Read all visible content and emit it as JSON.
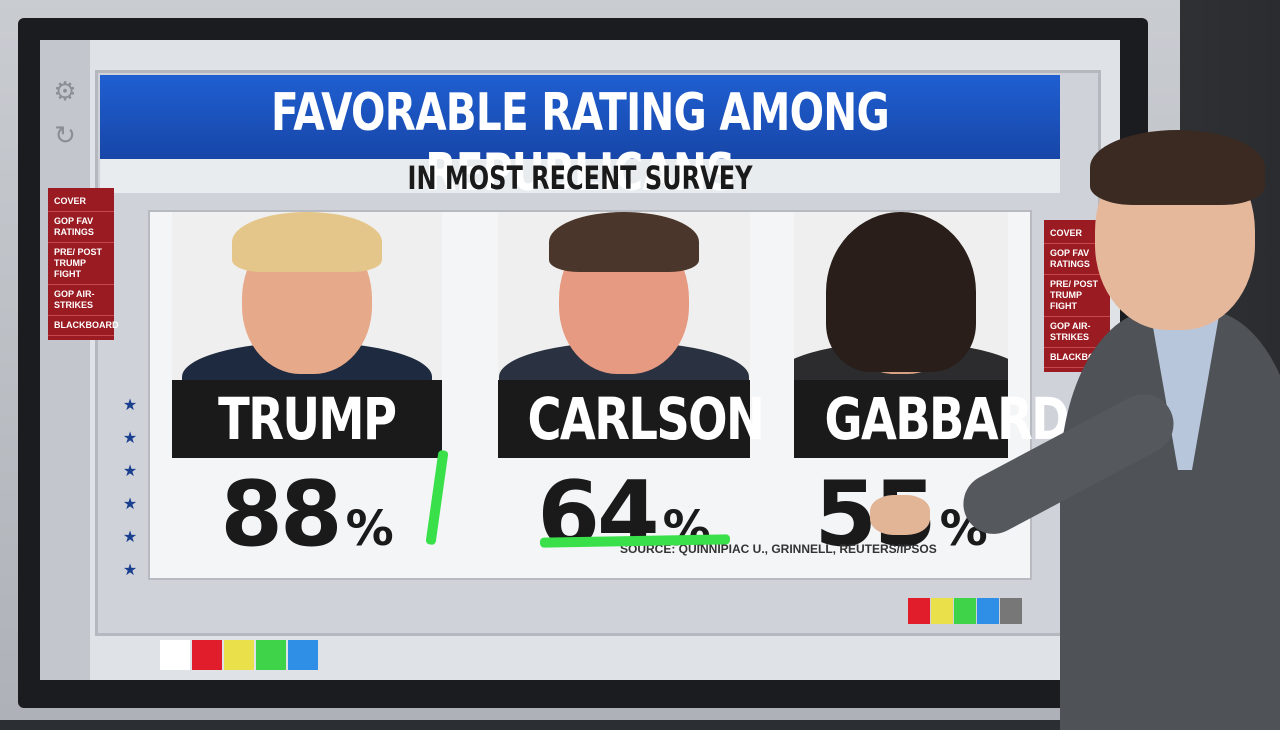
{
  "graphic": {
    "title": "FAVORABLE RATING AMONG REPUBLICANS",
    "subtitle": "IN MOST RECENT SURVEY",
    "source": "SOURCE: QUINNIPIAC U., GRINNELL, REUTERS/IPSOS",
    "percent_sign": "%",
    "candidates": [
      {
        "name": "TRUMP",
        "value": "88"
      },
      {
        "name": "CARLSON",
        "value": "64"
      },
      {
        "name": "GABBARD",
        "value": "55"
      }
    ]
  },
  "menu": {
    "items": [
      "COVER",
      "GOP FAV RATINGS",
      "PRE/ POST TRUMP FIGHT",
      "GOP AIR- STRIKES",
      "BLACKBOARD"
    ]
  },
  "colors": {
    "title_blue": "#1f5fd1",
    "menu_red": "#9b1b22",
    "ink_green": "#39e04a",
    "swatches": [
      "#ffffff",
      "#e21d2b",
      "#e9e04a",
      "#3fd34a",
      "#2f8fe6"
    ],
    "swatches_right": [
      "#e21d2b",
      "#e9e04a",
      "#3fd34a",
      "#2f8fe6",
      "#777777"
    ]
  },
  "icons": [
    "gear-icon",
    "refresh-icon",
    "star-icon"
  ]
}
